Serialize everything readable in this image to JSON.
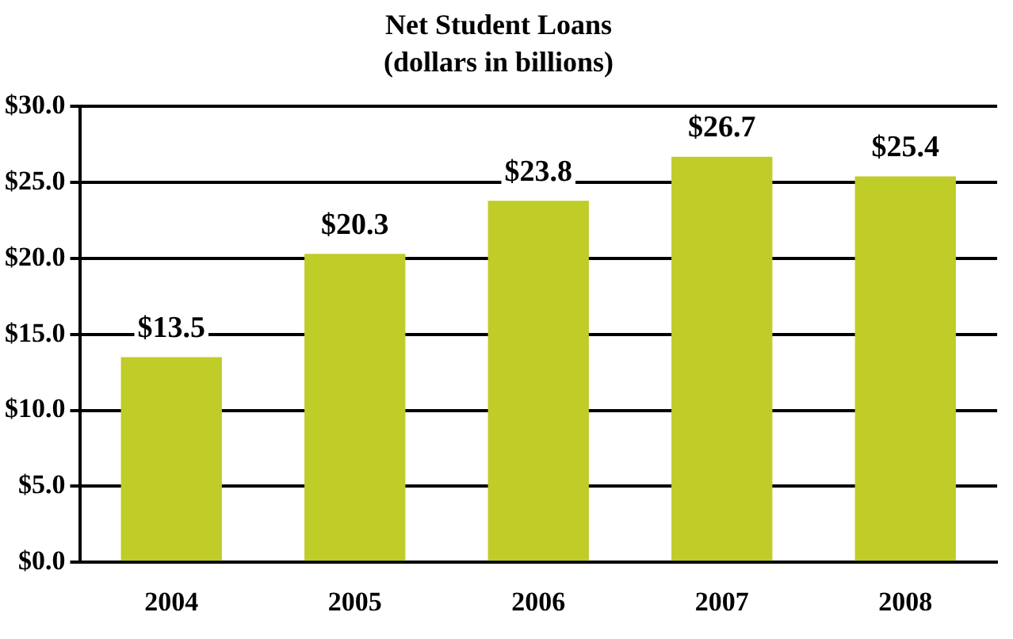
{
  "chart_data": {
    "type": "bar",
    "title": "Net Student Loans",
    "subtitle": "(dollars in billions)",
    "categories": [
      "2004",
      "2005",
      "2006",
      "2007",
      "2008"
    ],
    "values": [
      13.5,
      20.3,
      23.8,
      26.7,
      25.4
    ],
    "value_labels": [
      "$13.5",
      "$20.3",
      "$23.8",
      "$26.7",
      "$25.4"
    ],
    "color": "#c0cc28",
    "ylim": [
      0,
      30
    ],
    "yticks": [
      {
        "value": 0,
        "label": "$0.0"
      },
      {
        "value": 5,
        "label": "$5.0"
      },
      {
        "value": 10,
        "label": "$10.0"
      },
      {
        "value": 15,
        "label": "$15.0"
      },
      {
        "value": 20,
        "label": "$20.0"
      },
      {
        "value": 25,
        "label": "$25.0"
      },
      {
        "value": 30,
        "label": "$30.0"
      }
    ],
    "grid": "y",
    "legend": false
  }
}
